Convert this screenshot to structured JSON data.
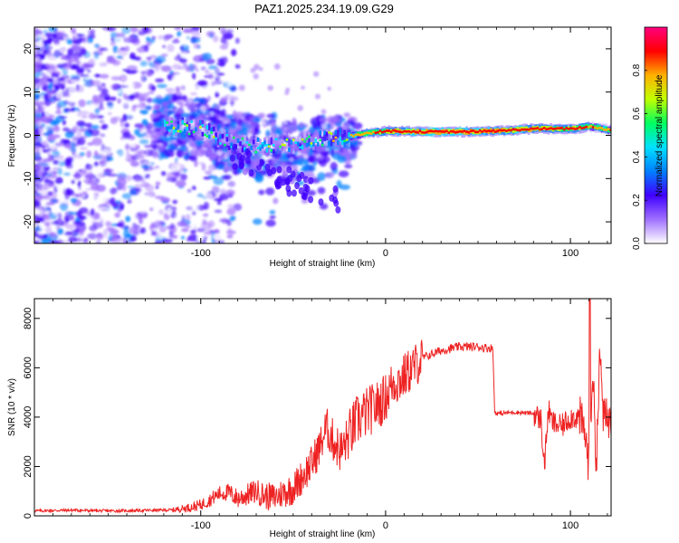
{
  "title": "PAZ1.2025.234.19.09.G29",
  "chart_data": [
    {
      "type": "heatmap",
      "title": "PAZ1.2025.234.19.09.G29",
      "xlabel": "Height of straight line (km)",
      "ylabel": "Frequency (Hz)",
      "xlim": [
        -190,
        122
      ],
      "ylim": [
        -25,
        25
      ],
      "xticks": [
        -100,
        0,
        100
      ],
      "yticks": [
        -20,
        -10,
        0,
        10,
        20
      ],
      "colorbar": {
        "label": "Normalized spectral amplitude",
        "range": [
          0.0,
          1.0
        ],
        "ticks": [
          0.0,
          0.2,
          0.4,
          0.6,
          0.8
        ],
        "colors": [
          "#ffffff",
          "#a070ff",
          "#4000ff",
          "#0080ff",
          "#00e0ff",
          "#00ff60",
          "#c0ff00",
          "#ffb000",
          "#ff0000",
          "#ff0080"
        ]
      },
      "ridge": [
        {
          "x": -115,
          "y": 2.0,
          "amp": 0.4
        },
        {
          "x": -100,
          "y": 1.5,
          "amp": 0.35
        },
        {
          "x": -85,
          "y": -1.5,
          "amp": 0.3
        },
        {
          "x": -70,
          "y": -2.5,
          "amp": 0.3
        },
        {
          "x": -55,
          "y": -2.0,
          "amp": 0.35
        },
        {
          "x": -40,
          "y": -1.0,
          "amp": 0.35
        },
        {
          "x": -25,
          "y": -0.5,
          "amp": 0.5
        },
        {
          "x": -10,
          "y": 0.5,
          "amp": 0.6
        },
        {
          "x": 0,
          "y": 1.0,
          "amp": 0.75
        },
        {
          "x": 20,
          "y": 0.8,
          "amp": 0.95
        },
        {
          "x": 40,
          "y": 0.8,
          "amp": 0.95
        },
        {
          "x": 60,
          "y": 1.0,
          "amp": 0.85
        },
        {
          "x": 80,
          "y": 1.5,
          "amp": 0.8
        },
        {
          "x": 100,
          "y": 1.5,
          "amp": 0.75
        },
        {
          "x": 110,
          "y": 2.0,
          "amp": 0.6
        },
        {
          "x": 122,
          "y": 1.2,
          "amp": 0.6
        }
      ]
    },
    {
      "type": "line",
      "xlabel": "Height of straight line (km)",
      "ylabel": "SNR (10 * v/v)",
      "xlim": [
        -190,
        122
      ],
      "ylim": [
        0,
        8800
      ],
      "xticks": [
        -100,
        0,
        100
      ],
      "yticks": [
        0,
        2000,
        4000,
        6000,
        8000
      ],
      "series": [
        {
          "name": "SNR",
          "color": "#ee2222",
          "x": [
            -190,
            -170,
            -150,
            -130,
            -115,
            -105,
            -100,
            -95,
            -90,
            -85,
            -80,
            -75,
            -70,
            -65,
            -60,
            -55,
            -50,
            -45,
            -40,
            -35,
            -32,
            -28,
            -24,
            -20,
            -16,
            -12,
            -8,
            -4,
            0,
            4,
            8,
            12,
            16,
            20,
            30,
            40,
            50,
            55,
            58,
            59,
            60,
            62,
            70,
            80,
            84,
            86,
            88,
            90,
            95,
            100,
            105,
            108,
            110,
            112,
            114,
            116,
            118,
            122
          ],
          "y": [
            200,
            230,
            200,
            220,
            240,
            350,
            450,
            650,
            900,
            950,
            700,
            850,
            1000,
            800,
            750,
            950,
            1100,
            1600,
            2100,
            2900,
            3600,
            3000,
            2600,
            3200,
            3800,
            4100,
            4300,
            4500,
            4800,
            5400,
            5500,
            5800,
            6100,
            6400,
            6700,
            6850,
            6850,
            6800,
            6800,
            4200,
            4150,
            4150,
            4200,
            4150,
            3900,
            2000,
            4300,
            3800,
            3600,
            4000,
            4000,
            3300,
            2000,
            6000,
            2200,
            6500,
            3900,
            3950
          ]
        }
      ]
    }
  ]
}
